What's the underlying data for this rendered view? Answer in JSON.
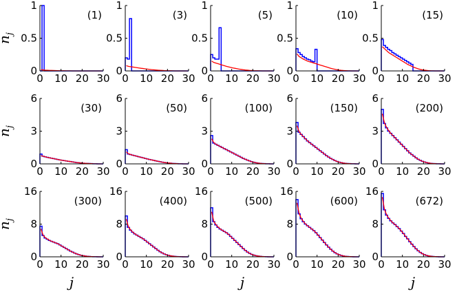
{
  "figure": {
    "xlabel_main": "j",
    "ylabel_main": "n",
    "ylabel_sub": "j"
  },
  "colors": {
    "histogram": "#0000ff",
    "fit": "#ff0000",
    "axes": "#000000"
  },
  "chart_data": [
    {
      "type": "line",
      "label": "(1)",
      "xlim": [
        0,
        30
      ],
      "ylim": [
        0,
        1
      ],
      "xticks": [
        0,
        10,
        20,
        30
      ],
      "yticks": [
        0,
        0.5,
        1
      ],
      "ytick_labels": [
        "0",
        "0.5",
        "1"
      ],
      "hist": [
        0,
        1.0,
        0,
        0,
        0,
        0,
        0,
        0,
        0,
        0,
        0,
        0,
        0,
        0,
        0,
        0,
        0,
        0,
        0,
        0,
        0,
        0,
        0,
        0,
        0,
        0,
        0,
        0,
        0,
        0
      ],
      "fit": [
        0.02,
        0.015,
        0.012,
        0.01,
        0.008,
        0.007,
        0.006,
        0.005,
        0.004,
        0.003,
        0.002,
        0.002,
        0.001,
        0.001,
        0.001,
        0,
        0,
        0,
        0,
        0,
        0,
        0,
        0,
        0,
        0,
        0,
        0,
        0,
        0,
        0
      ]
    },
    {
      "type": "line",
      "label": "(3)",
      "xlim": [
        0,
        30
      ],
      "ylim": [
        0,
        1
      ],
      "xticks": [
        0,
        10,
        20,
        30
      ],
      "yticks": [
        0,
        0.5,
        1
      ],
      "ytick_labels": [
        "0",
        "0.5",
        "1"
      ],
      "hist": [
        0.2,
        0.18,
        0.8,
        0,
        0,
        0,
        0,
        0,
        0,
        0,
        0,
        0,
        0,
        0,
        0,
        0,
        0,
        0,
        0,
        0,
        0,
        0,
        0,
        0,
        0,
        0,
        0,
        0,
        0,
        0
      ],
      "fit": [
        0.08,
        0.07,
        0.065,
        0.06,
        0.055,
        0.05,
        0.045,
        0.04,
        0.036,
        0.032,
        0.028,
        0.024,
        0.02,
        0.017,
        0.014,
        0.011,
        0.009,
        0.007,
        0.005,
        0.004,
        0.003,
        0.002,
        0.001,
        0,
        0,
        0,
        0,
        0,
        0,
        0
      ]
    },
    {
      "type": "line",
      "label": "(5)",
      "xlim": [
        0,
        30
      ],
      "ylim": [
        0,
        1
      ],
      "xticks": [
        0,
        10,
        20,
        30
      ],
      "yticks": [
        0,
        0.5,
        1
      ],
      "ytick_labels": [
        "0",
        "0.5",
        "1"
      ],
      "hist": [
        0.25,
        0.2,
        0.18,
        0.18,
        0.66,
        0,
        0,
        0,
        0,
        0,
        0,
        0,
        0,
        0,
        0,
        0,
        0,
        0,
        0,
        0,
        0,
        0,
        0,
        0,
        0,
        0,
        0,
        0,
        0,
        0
      ],
      "fit": [
        0.15,
        0.13,
        0.12,
        0.11,
        0.1,
        0.09,
        0.08,
        0.07,
        0.062,
        0.054,
        0.046,
        0.04,
        0.034,
        0.028,
        0.023,
        0.018,
        0.014,
        0.011,
        0.008,
        0.006,
        0.004,
        0.003,
        0.002,
        0.001,
        0,
        0,
        0,
        0,
        0,
        0
      ]
    },
    {
      "type": "line",
      "label": "(10)",
      "xlim": [
        0,
        30
      ],
      "ylim": [
        0,
        1
      ],
      "xticks": [
        0,
        10,
        20,
        30
      ],
      "yticks": [
        0,
        0.5,
        1
      ],
      "ytick_labels": [
        "0",
        "0.5",
        "1"
      ],
      "hist": [
        0.34,
        0.28,
        0.25,
        0.22,
        0.2,
        0.18,
        0.17,
        0.15,
        0.14,
        0.33,
        0,
        0,
        0,
        0,
        0,
        0,
        0,
        0,
        0,
        0,
        0,
        0,
        0,
        0,
        0,
        0,
        0,
        0,
        0,
        0
      ],
      "fit": [
        0.26,
        0.22,
        0.2,
        0.18,
        0.165,
        0.15,
        0.14,
        0.13,
        0.12,
        0.11,
        0.1,
        0.09,
        0.08,
        0.07,
        0.06,
        0.05,
        0.04,
        0.032,
        0.025,
        0.018,
        0.013,
        0.009,
        0.006,
        0.004,
        0.002,
        0.001,
        0,
        0,
        0,
        0
      ]
    },
    {
      "type": "line",
      "label": "(15)",
      "xlim": [
        0,
        30
      ],
      "ylim": [
        0,
        1
      ],
      "xticks": [
        0,
        10,
        20,
        30
      ],
      "yticks": [
        0,
        0.5,
        1
      ],
      "ytick_labels": [
        "0",
        "0.5",
        "1"
      ],
      "hist": [
        0.48,
        0.39,
        0.36,
        0.33,
        0.31,
        0.28,
        0.26,
        0.24,
        0.22,
        0.2,
        0.18,
        0.16,
        0.14,
        0.12,
        0.1,
        0,
        0,
        0,
        0,
        0,
        0,
        0,
        0,
        0,
        0,
        0,
        0,
        0,
        0,
        0
      ],
      "fit": [
        0.37,
        0.34,
        0.31,
        0.28,
        0.26,
        0.24,
        0.22,
        0.2,
        0.18,
        0.16,
        0.14,
        0.12,
        0.1,
        0.085,
        0.07,
        0.055,
        0.043,
        0.032,
        0.023,
        0.016,
        0.011,
        0.007,
        0.004,
        0.002,
        0.001,
        0,
        0,
        0,
        0,
        0
      ]
    },
    {
      "type": "line",
      "label": "(30)",
      "xlim": [
        0,
        30
      ],
      "ylim": [
        0,
        6
      ],
      "xticks": [
        0,
        10,
        20,
        30
      ],
      "yticks": [
        0,
        3,
        6
      ],
      "ytick_labels": [
        "0",
        "3",
        "6"
      ],
      "hist": [
        0.9,
        0.7,
        0.65,
        0.6,
        0.56,
        0.52,
        0.48,
        0.44,
        0.4,
        0.36,
        0.33,
        0.3,
        0.27,
        0.24,
        0.21,
        0.18,
        0.15,
        0.12,
        0.1,
        0.08,
        0.06,
        0.05,
        0.04,
        0.03,
        0.02,
        0.01,
        0.01,
        0,
        0,
        0
      ],
      "fit": [
        0.75,
        0.7,
        0.65,
        0.6,
        0.56,
        0.52,
        0.48,
        0.44,
        0.4,
        0.36,
        0.33,
        0.3,
        0.27,
        0.24,
        0.21,
        0.18,
        0.15,
        0.12,
        0.1,
        0.08,
        0.06,
        0.05,
        0.04,
        0.03,
        0.02,
        0.01,
        0.01,
        0,
        0,
        0
      ]
    },
    {
      "type": "line",
      "label": "(50)",
      "xlim": [
        0,
        30
      ],
      "ylim": [
        0,
        6
      ],
      "xticks": [
        0,
        10,
        20,
        30
      ],
      "yticks": [
        0,
        3,
        6
      ],
      "ytick_labels": [
        "0",
        "3",
        "6"
      ],
      "hist": [
        1.3,
        0.9,
        0.85,
        0.8,
        0.75,
        0.7,
        0.65,
        0.6,
        0.55,
        0.5,
        0.45,
        0.4,
        0.36,
        0.32,
        0.28,
        0.24,
        0.2,
        0.16,
        0.13,
        0.1,
        0.08,
        0.06,
        0.04,
        0.03,
        0.02,
        0.01,
        0.01,
        0,
        0,
        0
      ],
      "fit": [
        1.1,
        0.92,
        0.86,
        0.8,
        0.75,
        0.7,
        0.65,
        0.6,
        0.55,
        0.5,
        0.45,
        0.4,
        0.36,
        0.32,
        0.28,
        0.24,
        0.2,
        0.16,
        0.13,
        0.1,
        0.08,
        0.06,
        0.04,
        0.03,
        0.02,
        0.01,
        0.01,
        0,
        0,
        0
      ]
    },
    {
      "type": "line",
      "label": "(100)",
      "xlim": [
        0,
        30
      ],
      "ylim": [
        0,
        6
      ],
      "xticks": [
        0,
        10,
        20,
        30
      ],
      "yticks": [
        0,
        3,
        6
      ],
      "ytick_labels": [
        "0",
        "3",
        "6"
      ],
      "hist": [
        2.6,
        1.9,
        1.8,
        1.7,
        1.6,
        1.5,
        1.4,
        1.3,
        1.2,
        1.1,
        1.0,
        0.9,
        0.8,
        0.7,
        0.6,
        0.5,
        0.42,
        0.34,
        0.27,
        0.2,
        0.15,
        0.1,
        0.07,
        0.05,
        0.03,
        0.02,
        0.01,
        0.01,
        0,
        0
      ],
      "fit": [
        2.3,
        1.95,
        1.8,
        1.7,
        1.6,
        1.5,
        1.4,
        1.3,
        1.2,
        1.1,
        1.0,
        0.9,
        0.8,
        0.7,
        0.6,
        0.5,
        0.42,
        0.34,
        0.27,
        0.2,
        0.15,
        0.1,
        0.07,
        0.05,
        0.03,
        0.02,
        0.01,
        0.01,
        0,
        0
      ]
    },
    {
      "type": "line",
      "label": "(150)",
      "xlim": [
        0,
        30
      ],
      "ylim": [
        0,
        6
      ],
      "xticks": [
        0,
        10,
        20,
        30
      ],
      "yticks": [
        0,
        3,
        6
      ],
      "ytick_labels": [
        "0",
        "3",
        "6"
      ],
      "hist": [
        3.8,
        2.9,
        2.7,
        2.5,
        2.3,
        2.1,
        1.95,
        1.8,
        1.65,
        1.5,
        1.35,
        1.2,
        1.05,
        0.9,
        0.75,
        0.62,
        0.5,
        0.4,
        0.3,
        0.22,
        0.16,
        0.11,
        0.07,
        0.05,
        0.03,
        0.02,
        0.01,
        0.01,
        0,
        0
      ],
      "fit": [
        3.5,
        2.95,
        2.7,
        2.5,
        2.3,
        2.1,
        1.95,
        1.8,
        1.65,
        1.5,
        1.35,
        1.2,
        1.05,
        0.9,
        0.75,
        0.62,
        0.5,
        0.4,
        0.3,
        0.22,
        0.16,
        0.11,
        0.07,
        0.05,
        0.03,
        0.02,
        0.01,
        0.01,
        0,
        0
      ]
    },
    {
      "type": "line",
      "label": "(200)",
      "xlim": [
        0,
        30
      ],
      "ylim": [
        0,
        6
      ],
      "xticks": [
        0,
        10,
        20,
        30
      ],
      "yticks": [
        0,
        3,
        6
      ],
      "ytick_labels": [
        "0",
        "3",
        "6"
      ],
      "hist": [
        5.0,
        3.7,
        3.3,
        3.0,
        2.8,
        2.6,
        2.4,
        2.2,
        2.0,
        1.8,
        1.6,
        1.4,
        1.2,
        1.0,
        0.85,
        0.7,
        0.55,
        0.42,
        0.32,
        0.24,
        0.17,
        0.12,
        0.08,
        0.05,
        0.03,
        0.02,
        0.01,
        0.01,
        0,
        0
      ],
      "fit": [
        4.6,
        3.75,
        3.35,
        3.05,
        2.8,
        2.6,
        2.4,
        2.2,
        2.0,
        1.8,
        1.6,
        1.4,
        1.2,
        1.0,
        0.85,
        0.7,
        0.55,
        0.42,
        0.32,
        0.24,
        0.17,
        0.12,
        0.08,
        0.05,
        0.03,
        0.02,
        0.01,
        0.01,
        0,
        0
      ]
    },
    {
      "type": "line",
      "label": "(300)",
      "xlim": [
        0,
        30
      ],
      "ylim": [
        0,
        16
      ],
      "xticks": [
        0,
        10,
        20,
        30
      ],
      "yticks": [
        0,
        8,
        16
      ],
      "ytick_labels": [
        "0",
        "8",
        "16"
      ],
      "hist": [
        7.5,
        5.2,
        4.6,
        4.3,
        4.0,
        3.8,
        3.6,
        3.4,
        3.2,
        2.9,
        2.6,
        2.3,
        2.0,
        1.7,
        1.4,
        1.15,
        0.9,
        0.7,
        0.52,
        0.38,
        0.27,
        0.18,
        0.12,
        0.08,
        0.05,
        0.03,
        0.02,
        0.01,
        0,
        0
      ],
      "fit": [
        6.8,
        5.3,
        4.7,
        4.35,
        4.05,
        3.8,
        3.6,
        3.4,
        3.2,
        2.9,
        2.6,
        2.3,
        2.0,
        1.7,
        1.4,
        1.15,
        0.9,
        0.7,
        0.52,
        0.38,
        0.27,
        0.18,
        0.12,
        0.08,
        0.05,
        0.03,
        0.02,
        0.01,
        0,
        0
      ]
    },
    {
      "type": "line",
      "label": "(400)",
      "xlim": [
        0,
        30
      ],
      "ylim": [
        0,
        16
      ],
      "xticks": [
        0,
        10,
        20,
        30
      ],
      "yticks": [
        0,
        8,
        16
      ],
      "ytick_labels": [
        "0",
        "8",
        "16"
      ],
      "hist": [
        10.0,
        7.2,
        6.5,
        6.0,
        5.6,
        5.3,
        5.0,
        4.7,
        4.4,
        4.0,
        3.6,
        3.2,
        2.8,
        2.4,
        2.0,
        1.6,
        1.25,
        0.95,
        0.7,
        0.5,
        0.35,
        0.24,
        0.16,
        0.1,
        0.06,
        0.04,
        0.02,
        0.01,
        0,
        0
      ],
      "fit": [
        9.2,
        7.3,
        6.6,
        6.05,
        5.65,
        5.3,
        5.0,
        4.7,
        4.4,
        4.0,
        3.6,
        3.2,
        2.8,
        2.4,
        2.0,
        1.6,
        1.25,
        0.95,
        0.7,
        0.5,
        0.35,
        0.24,
        0.16,
        0.1,
        0.06,
        0.04,
        0.02,
        0.01,
        0,
        0
      ]
    },
    {
      "type": "line",
      "label": "(500)",
      "xlim": [
        0,
        30
      ],
      "ylim": [
        0,
        16
      ],
      "xticks": [
        0,
        10,
        20,
        30
      ],
      "yticks": [
        0,
        8,
        16
      ],
      "ytick_labels": [
        "0",
        "8",
        "16"
      ],
      "hist": [
        12.0,
        8.6,
        7.8,
        7.2,
        6.8,
        6.5,
        6.2,
        5.9,
        5.5,
        5.0,
        4.5,
        4.0,
        3.5,
        3.0,
        2.5,
        2.0,
        1.55,
        1.15,
        0.85,
        0.6,
        0.42,
        0.28,
        0.18,
        0.12,
        0.07,
        0.04,
        0.02,
        0.01,
        0,
        0
      ],
      "fit": [
        11.0,
        8.7,
        7.9,
        7.3,
        6.85,
        6.5,
        6.2,
        5.9,
        5.5,
        5.0,
        4.5,
        4.0,
        3.5,
        3.0,
        2.5,
        2.0,
        1.55,
        1.15,
        0.85,
        0.6,
        0.42,
        0.28,
        0.18,
        0.12,
        0.07,
        0.04,
        0.02,
        0.01,
        0,
        0
      ]
    },
    {
      "type": "line",
      "label": "(600)",
      "xlim": [
        0,
        30
      ],
      "ylim": [
        0,
        16
      ],
      "xticks": [
        0,
        10,
        20,
        30
      ],
      "yticks": [
        0,
        8,
        16
      ],
      "ytick_labels": [
        "0",
        "8",
        "16"
      ],
      "hist": [
        14.0,
        10.5,
        9.3,
        8.6,
        8.0,
        7.6,
        7.2,
        6.8,
        6.4,
        5.9,
        5.3,
        4.7,
        4.1,
        3.5,
        2.9,
        2.35,
        1.85,
        1.4,
        1.02,
        0.72,
        0.5,
        0.33,
        0.21,
        0.13,
        0.08,
        0.05,
        0.03,
        0.01,
        0,
        0
      ],
      "fit": [
        13.2,
        10.6,
        9.4,
        8.65,
        8.05,
        7.6,
        7.2,
        6.8,
        6.4,
        5.9,
        5.3,
        4.7,
        4.1,
        3.5,
        2.9,
        2.35,
        1.85,
        1.4,
        1.02,
        0.72,
        0.5,
        0.33,
        0.21,
        0.13,
        0.08,
        0.05,
        0.03,
        0.01,
        0,
        0
      ]
    },
    {
      "type": "line",
      "label": "(672)",
      "xlim": [
        0,
        30
      ],
      "ylim": [
        0,
        16
      ],
      "xticks": [
        0,
        10,
        20,
        30
      ],
      "yticks": [
        0,
        8,
        16
      ],
      "ytick_labels": [
        "0",
        "8",
        "16"
      ],
      "hist": [
        15.5,
        11.5,
        10.2,
        9.4,
        8.8,
        8.3,
        7.9,
        7.4,
        6.9,
        6.3,
        5.7,
        5.0,
        4.4,
        3.7,
        3.1,
        2.5,
        1.95,
        1.48,
        1.08,
        0.76,
        0.52,
        0.34,
        0.22,
        0.14,
        0.08,
        0.05,
        0.03,
        0.01,
        0,
        0
      ],
      "fit": [
        14.6,
        11.6,
        10.3,
        9.45,
        8.85,
        8.3,
        7.9,
        7.4,
        6.9,
        6.3,
        5.7,
        5.0,
        4.4,
        3.7,
        3.1,
        2.5,
        1.95,
        1.48,
        1.08,
        0.76,
        0.52,
        0.34,
        0.22,
        0.14,
        0.08,
        0.05,
        0.03,
        0.01,
        0,
        0
      ]
    }
  ]
}
